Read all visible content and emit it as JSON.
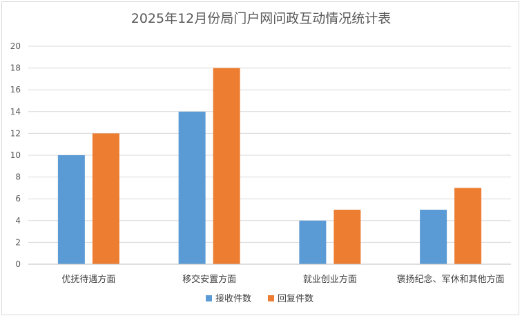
{
  "chart_data": {
    "type": "bar",
    "title": "2025年12月份局门户网问政互动情况统计表",
    "categories": [
      "优抚待遇方面",
      "移交安置方面",
      "就业创业方面",
      "褒扬纪念、军休和其他方面"
    ],
    "series": [
      {
        "name": "接收件数",
        "values": [
          10,
          14,
          4,
          5
        ],
        "color": "#5b9bd5"
      },
      {
        "name": "回复件数",
        "values": [
          12,
          18,
          5,
          7
        ],
        "color": "#ed7d31"
      }
    ],
    "ylim": [
      0,
      20
    ],
    "yticks": [
      0,
      2,
      4,
      6,
      8,
      10,
      12,
      14,
      16,
      18,
      20
    ],
    "grid": true,
    "legend_position": "bottom",
    "xlabel": "",
    "ylabel": ""
  }
}
